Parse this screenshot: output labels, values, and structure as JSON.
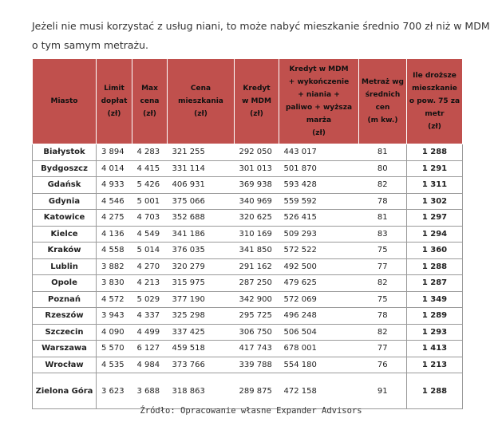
{
  "intro": "Jeżeli nie musi korzystać z usług niani, to może nabyć mieszkanie średnio 700 zł niż w MDM o tym samym metrażu.",
  "header_color": "#c0504d",
  "columns": [
    [
      "Miasto"
    ],
    [
      "Limit",
      "dopłat",
      "(zł)"
    ],
    [
      "Max",
      "cena",
      "(zł)"
    ],
    [
      "Cena",
      "mieszkania",
      "(zł)"
    ],
    [
      "Kredyt",
      "w MDM",
      "(zł)"
    ],
    [
      "Kredyt w MDM",
      "+ wykończenie",
      "+ niania +",
      "paliwo + wyższa",
      "marża",
      "(zł)"
    ],
    [
      "Metraż wg",
      "średnich",
      "cen",
      "(m kw.)"
    ],
    [
      "Ile droższe",
      "mieszkanie",
      "o pow. 75 za",
      "metr",
      "(zł)"
    ]
  ],
  "rows": [
    [
      "Białystok",
      "3 894",
      "4 283",
      "321 255",
      "292 050",
      "443 017",
      "81",
      "1 288"
    ],
    [
      "Bydgoszcz",
      "4 014",
      "4 415",
      "331 114",
      "301 013",
      "501 870",
      "80",
      "1 291"
    ],
    [
      "Gdańsk",
      "4 933",
      "5 426",
      "406 931",
      "369 938",
      "593 428",
      "82",
      "1 311"
    ],
    [
      "Gdynia",
      "4 546",
      "5 001",
      "375 066",
      "340 969",
      "559 592",
      "78",
      "1 302"
    ],
    [
      "Katowice",
      "4 275",
      "4 703",
      "352 688",
      "320 625",
      "526 415",
      "81",
      "1 297"
    ],
    [
      "Kielce",
      "4 136",
      "4 549",
      "341 186",
      "310 169",
      "509 293",
      "83",
      "1 294"
    ],
    [
      "Kraków",
      "4 558",
      "5 014",
      "376 035",
      "341 850",
      "572 522",
      "75",
      "1 360"
    ],
    [
      "Lublin",
      "3 882",
      "4 270",
      "320 279",
      "291 162",
      "492 500",
      "77",
      "1 288"
    ],
    [
      "Opole",
      "3 830",
      "4 213",
      "315 975",
      "287 250",
      "479 625",
      "82",
      "1 287"
    ],
    [
      "Poznań",
      "4 572",
      "5 029",
      "377 190",
      "342 900",
      "572 069",
      "75",
      "1 349"
    ],
    [
      "Rzeszów",
      "3 943",
      "4 337",
      "325 298",
      "295 725",
      "496 248",
      "78",
      "1 289"
    ],
    [
      "Szczecin",
      "4 090",
      "4 499",
      "337 425",
      "306 750",
      "506 504",
      "82",
      "1 293"
    ],
    [
      "Warszawa",
      "5 570",
      "6 127",
      "459 518",
      "417 743",
      "678 001",
      "77",
      "1 413"
    ],
    [
      "Wrocław",
      "4 535",
      "4 984",
      "373 766",
      "339 788",
      "554 180",
      "76",
      "1 213"
    ],
    [
      "Zielona Góra",
      "3 623",
      "3 688",
      "318 863",
      "289 875",
      "472 158",
      "91",
      "1 288"
    ]
  ],
  "source": "Źródło: Opracowanie własne Expander Advisors"
}
